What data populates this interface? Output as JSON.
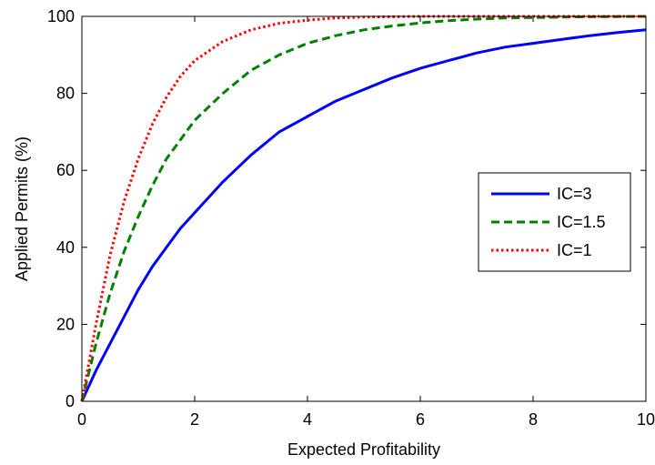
{
  "chart_data": {
    "type": "line",
    "title": "",
    "xlabel": "Expected Profitability",
    "ylabel": "Applied Permits (%)",
    "xlim": [
      0,
      10
    ],
    "ylim": [
      0,
      100
    ],
    "xticks": [
      0,
      2,
      4,
      6,
      8,
      10
    ],
    "yticks": [
      0,
      20,
      40,
      60,
      80,
      100
    ],
    "xtick_labels": [
      "0",
      "2",
      "4",
      "6",
      "8",
      "10"
    ],
    "ytick_labels": [
      "0",
      "20",
      "40",
      "60",
      "80",
      "100"
    ],
    "grid": false,
    "legend_position": "center-right",
    "series": [
      {
        "name": "IC=3",
        "color": "#0000ff",
        "style": "solid",
        "x": [
          0,
          0.25,
          0.5,
          0.75,
          1,
          1.25,
          1.5,
          1.75,
          2,
          2.5,
          3,
          3.5,
          4,
          4.5,
          5,
          5.5,
          6,
          6.5,
          7,
          7.5,
          8,
          8.5,
          9,
          9.5,
          10
        ],
        "y": [
          0,
          8,
          15,
          22,
          29,
          35,
          40,
          45,
          49,
          57,
          64,
          70,
          74,
          78,
          81,
          84,
          86.5,
          88.5,
          90.5,
          92,
          93,
          94,
          95,
          95.8,
          96.5
        ]
      },
      {
        "name": "IC=1.5",
        "color": "#008000",
        "style": "dashed",
        "x": [
          0,
          0.25,
          0.5,
          0.75,
          1,
          1.25,
          1.5,
          1.75,
          2,
          2.5,
          3,
          3.5,
          4,
          4.5,
          5,
          5.5,
          6,
          6.5,
          7,
          7.5,
          8,
          8.5,
          9,
          9.5,
          10
        ],
        "y": [
          0,
          15,
          28,
          39,
          48,
          56,
          63,
          68,
          73,
          80,
          86,
          90,
          93,
          95,
          96.5,
          97.5,
          98.3,
          98.9,
          99.3,
          99.6,
          99.7,
          99.8,
          99.9,
          99.95,
          100
        ]
      },
      {
        "name": "IC=1",
        "color": "#ff0000",
        "style": "dotted",
        "x": [
          0,
          0.25,
          0.5,
          0.75,
          1,
          1.25,
          1.5,
          1.75,
          2,
          2.5,
          3,
          3.5,
          4,
          4.5,
          5,
          5.5,
          6,
          7,
          8,
          9,
          10
        ],
        "y": [
          0,
          20,
          38,
          52,
          63,
          72,
          79,
          84.5,
          88.5,
          93.5,
          96.5,
          98.2,
          99,
          99.6,
          99.8,
          99.9,
          100,
          100,
          100,
          100,
          100
        ]
      }
    ]
  }
}
